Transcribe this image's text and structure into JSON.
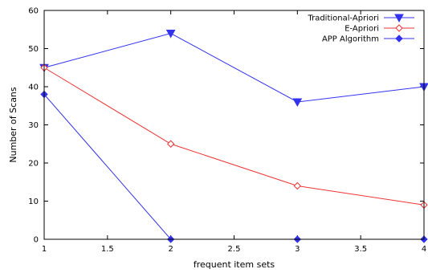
{
  "chart_data": {
    "type": "line",
    "title": "",
    "xlabel": "frequent item sets",
    "ylabel": "Number of Scans",
    "xlim": [
      1,
      4
    ],
    "ylim": [
      0,
      60
    ],
    "x_ticks": [
      "1",
      "1.5",
      "2",
      "2.5",
      "3",
      "3.5",
      "4"
    ],
    "x_tick_values": [
      1,
      1.5,
      2,
      2.5,
      3,
      3.5,
      4
    ],
    "y_ticks": [
      "0",
      "10",
      "20",
      "30",
      "40",
      "50",
      "60"
    ],
    "y_tick_values": [
      0,
      10,
      20,
      30,
      40,
      50,
      60
    ],
    "grid": false,
    "legend_position": "top-right",
    "x": [
      1,
      2,
      3,
      4
    ],
    "series": [
      {
        "name": "Traditional-Apriori",
        "values": [
          45,
          54,
          36,
          40
        ],
        "color": "#3333ee",
        "marker": "triangle-down-filled"
      },
      {
        "name": "E-Apriori",
        "values": [
          45,
          25,
          14,
          9
        ],
        "color": "#ee3333",
        "marker": "diamond-open"
      },
      {
        "name": "APP Algorithm",
        "values": [
          38,
          0,
          0,
          0
        ],
        "color": "#3333ee",
        "marker": "diamond-filled"
      }
    ]
  }
}
